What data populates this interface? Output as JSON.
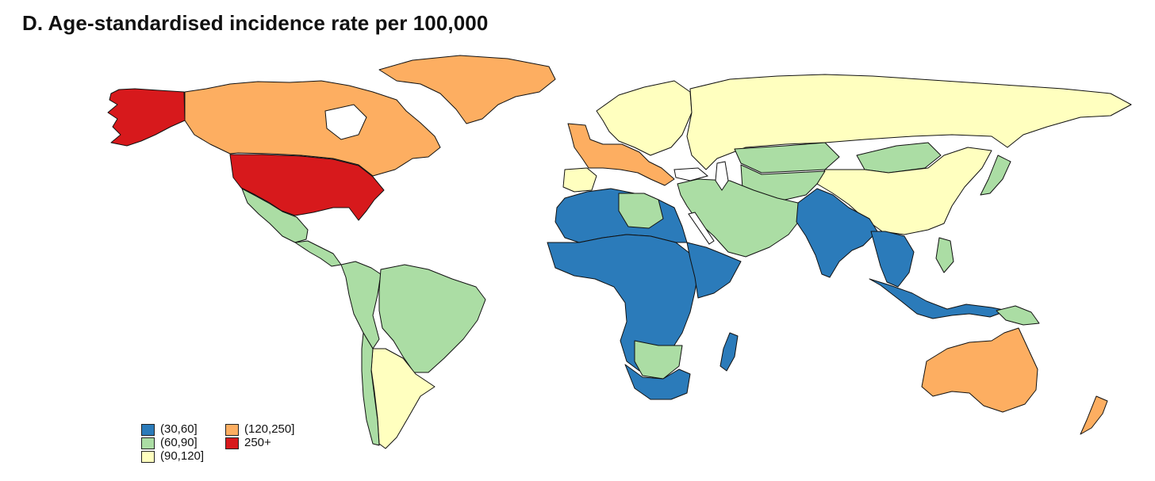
{
  "title": "D. Age-standardised incidence rate per 100,000",
  "legend": [
    {
      "label": "(30,60]",
      "color": "#2b7bba"
    },
    {
      "label": "(60,90]",
      "color": "#abdda4"
    },
    {
      "label": "(90,120]",
      "color": "#ffffbf"
    },
    {
      "label": "(120,250]",
      "color": "#fdae61"
    },
    {
      "label": "250+",
      "color": "#d7191c"
    }
  ],
  "regions": {
    "alaska": "250+",
    "usa": "250+",
    "canada": "(120,250]",
    "greenland": "(120,250]",
    "western_europe": "(120,250]",
    "australia": "(120,250]",
    "new_zealand": "(120,250]",
    "russia": "(90,120]",
    "china": "(90,120]",
    "northern_europe": "(90,120]",
    "argentina": "(90,120]",
    "iberia": "(90,120]",
    "mexico": "(60,90]",
    "central_america": "(60,90]",
    "brazil": "(60,90]",
    "andes": "(60,90]",
    "chile": "(60,90]",
    "middle_east": "(60,90]",
    "central_asia": "(60,90]",
    "mongolia": "(60,90]",
    "kazakhstan": "(60,90]",
    "libya": "(60,90]",
    "japan": "(60,90]",
    "southern_africa_inner": "(60,90]",
    "philippines": "(60,90]",
    "png": "(60,90]",
    "north_africa": "(30,60]",
    "sub_saharan_africa": "(30,60]",
    "south_africa": "(30,60]",
    "madagascar": "(30,60]",
    "india": "(30,60]",
    "southeast_asia": "(30,60]",
    "indonesia": "(30,60]",
    "horn_of_africa": "(30,60]"
  }
}
